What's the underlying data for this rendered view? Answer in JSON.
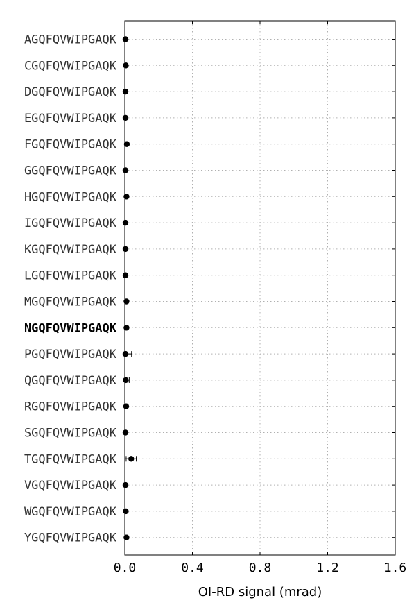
{
  "chart_data": {
    "type": "scatter",
    "orientation": "horizontal",
    "xlabel": "OI-RD signal (mrad)",
    "xlim": [
      0.0,
      1.6
    ],
    "xticks": [
      "0.0",
      "0.4",
      "0.8",
      "1.2",
      "1.6"
    ],
    "xtick_values": [
      0.0,
      0.4,
      0.8,
      1.2,
      1.6
    ],
    "grid": true,
    "highlight_category": "NGQFQVWIPGAQK",
    "categories": [
      "AGQFQVWIPGAQK",
      "CGQFQVWIPGAQK",
      "DGQFQVWIPGAQK",
      "EGQFQVWIPGAQK",
      "FGQFQVWIPGAQK",
      "GGQFQVWIPGAQK",
      "HGQFQVWIPGAQK",
      "IGQFQVWIPGAQK",
      "KGQFQVWIPGAQK",
      "LGQFQVWIPGAQK",
      "MGQFQVWIPGAQK",
      "NGQFQVWIPGAQK",
      "PGQFQVWIPGAQK",
      "QGQFQVWIPGAQK",
      "RGQFQVWIPGAQK",
      "SGQFQVWIPGAQK",
      "TGQFQVWIPGAQK",
      "VGQFQVWIPGAQK",
      "WGQFQVWIPGAQK",
      "YGQFQVWIPGAQK"
    ],
    "values": [
      0.004,
      0.006,
      0.004,
      0.004,
      0.012,
      0.004,
      0.01,
      0.004,
      0.004,
      0.004,
      0.01,
      0.01,
      0.004,
      0.006,
      0.008,
      0.004,
      0.038,
      0.004,
      0.006,
      0.01
    ],
    "errors": [
      0.002,
      0.004,
      0.002,
      0.002,
      0.003,
      0.002,
      0.003,
      0.002,
      0.002,
      0.002,
      0.003,
      0.003,
      0.036,
      0.02,
      0.004,
      0.002,
      0.03,
      0.002,
      0.004,
      0.003
    ],
    "colors": {
      "marker": "#000000",
      "grid": "#b0b0b0",
      "frame": "#000000"
    }
  }
}
